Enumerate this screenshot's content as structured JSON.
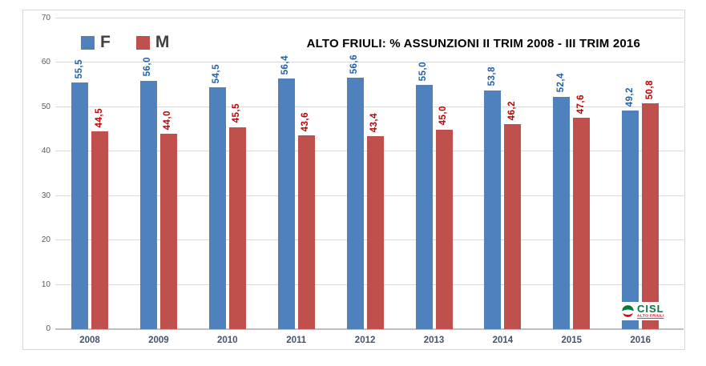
{
  "chart_data": {
    "type": "bar",
    "title": "ALTO FRIULI: % ASSUNZIONI II TRIM 2008 - III TRIM 2016",
    "categories": [
      "2008",
      "2009",
      "2010",
      "2011",
      "2012",
      "2013",
      "2014",
      "2015",
      "2016"
    ],
    "series": [
      {
        "name": "F",
        "color": "#4F81BD",
        "label_color": "#1F5FA8",
        "values": [
          55.5,
          56.0,
          54.5,
          56.4,
          56.6,
          55.0,
          53.8,
          52.4,
          49.2
        ]
      },
      {
        "name": "M",
        "color": "#C0504D",
        "label_color": "#C00000",
        "values": [
          44.5,
          44.0,
          45.5,
          43.6,
          43.4,
          45.0,
          46.2,
          47.6,
          50.8
        ]
      }
    ],
    "xlabel": "",
    "ylabel": "",
    "ylim": [
      0,
      70
    ],
    "ytick_step": 10,
    "yticks": [
      0,
      10,
      20,
      30,
      40,
      50,
      60,
      70
    ],
    "grid": true,
    "legend_position": "top-left",
    "value_label_decimal_separator": ",",
    "value_label_rotation": -90
  },
  "logo": {
    "text": "CISL",
    "subtext": "ALTO FRIULI",
    "text_color": "#007B3D",
    "subtext_color": "#E2001A"
  },
  "colors": {
    "grid": "#D9D9D9",
    "axis": "#BFBFBF",
    "tick_label": "#595959",
    "category_label": "#44546A",
    "title": "#000000",
    "legend_text": "#404040",
    "frame_border": "#D6D6D6",
    "background": "#FFFFFF"
  }
}
